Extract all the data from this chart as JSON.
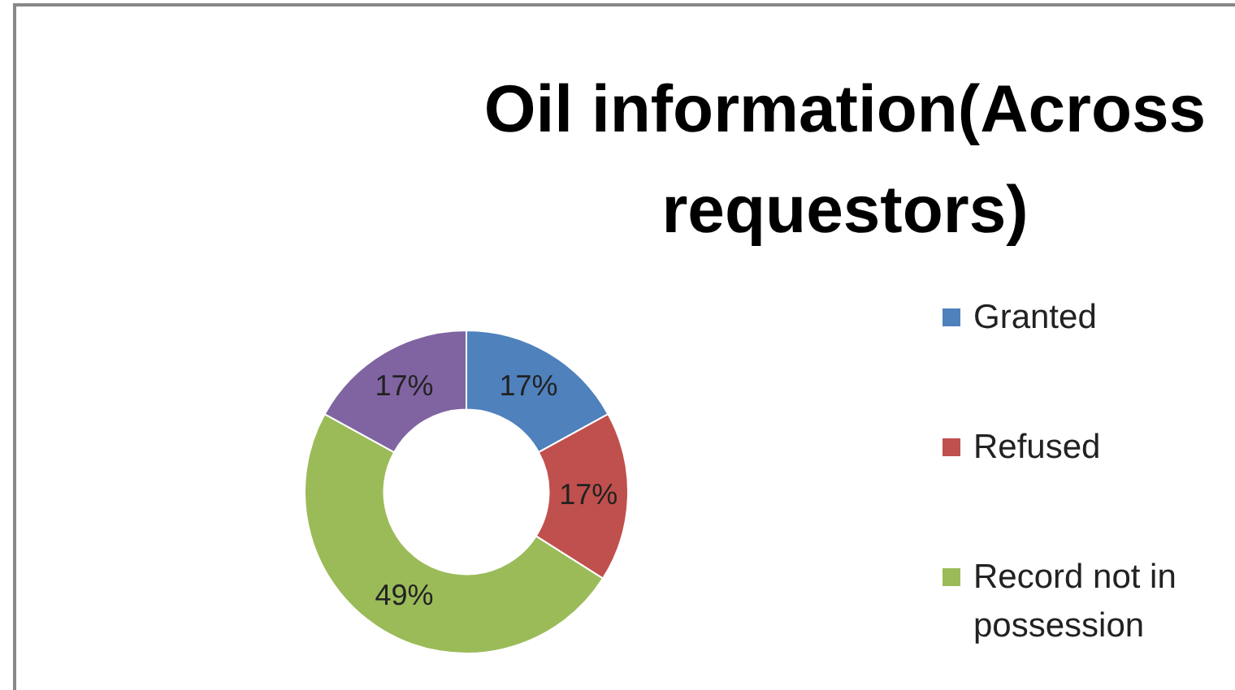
{
  "chart_data": {
    "type": "donut",
    "title": "Oil information(Across requestors)",
    "categories": [
      "Granted",
      "Refused",
      "Record not in possession",
      null
    ],
    "values": [
      17,
      17,
      49,
      17
    ],
    "colors": [
      "#4f81bd",
      "#c0504d",
      "#9bbb59",
      "#8064a2"
    ],
    "value_labels": [
      "17%",
      "17%",
      "49%",
      "17%"
    ],
    "legend": "right"
  }
}
